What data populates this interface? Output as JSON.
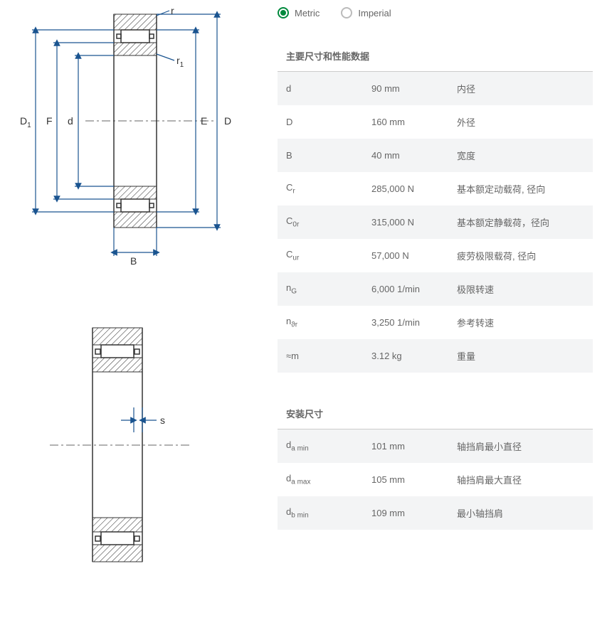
{
  "unit_toggle": {
    "metric_label": "Metric",
    "imperial_label": "Imperial",
    "selected": "metric"
  },
  "diagram1": {
    "labels": {
      "D1": "D",
      "D1sub": "1",
      "F": "F",
      "d": "d",
      "E": "E",
      "D": "D",
      "r": "r",
      "r1": "r",
      "r1sub": "1",
      "B": "B"
    }
  },
  "diagram2": {
    "labels": {
      "s": "s"
    }
  },
  "section1": {
    "title": "主要尺寸和性能数据",
    "rows": [
      {
        "sym": "d",
        "sub": "",
        "val": "90 mm",
        "desc": "内径"
      },
      {
        "sym": "D",
        "sub": "",
        "val": "160 mm",
        "desc": "外径"
      },
      {
        "sym": "B",
        "sub": "",
        "val": "40 mm",
        "desc": "宽度"
      },
      {
        "sym": "C",
        "sub": "r",
        "val": "285,000 N",
        "desc": "基本额定动载荷, 径向"
      },
      {
        "sym": "C",
        "sub": "0r",
        "val": "315,000 N",
        "desc": "基本额定静载荷，径向"
      },
      {
        "sym": "C",
        "sub": "ur",
        "val": "57,000 N",
        "desc": "疲劳极限载荷, 径向"
      },
      {
        "sym": "n",
        "sub": "G",
        "val": "6,000 1/min",
        "desc": "极限转速"
      },
      {
        "sym": "n",
        "sub": "ϑr",
        "val": "3,250 1/min",
        "desc": "参考转速"
      },
      {
        "sym": "≈m",
        "sub": "",
        "val": "3.12 kg",
        "desc": "重量"
      }
    ]
  },
  "section2": {
    "title": "安装尺寸",
    "rows": [
      {
        "sym": "d",
        "sub": "a min",
        "val": "101 mm",
        "desc": "轴挡肩最小直径"
      },
      {
        "sym": "d",
        "sub": "a max",
        "val": "105 mm",
        "desc": "轴挡肩最大直径"
      },
      {
        "sym": "d",
        "sub": "b min",
        "val": "109 mm",
        "desc": "最小轴挡肩"
      }
    ]
  },
  "colors": {
    "accent": "#00893d",
    "dim_line": "#1a5490",
    "text": "#666666",
    "row_alt": "#f3f4f5",
    "border": "#cccccc"
  }
}
